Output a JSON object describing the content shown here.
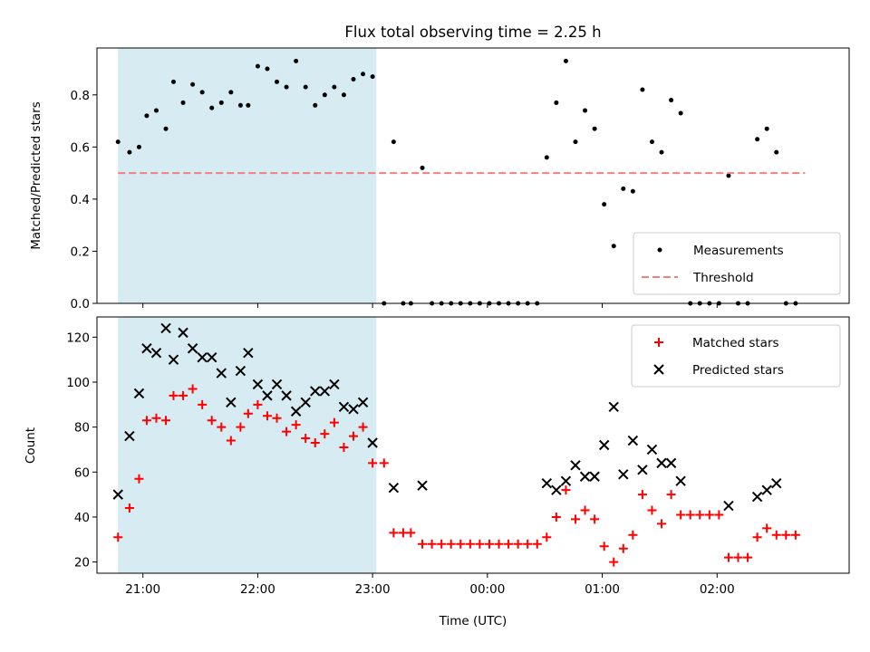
{
  "chart_data": [
    {
      "type": "scatter",
      "title": "Flux total observing time = 2.25 h",
      "xlabel": "",
      "ylabel": "Matched/Predicted stars",
      "ylim": [
        0,
        0.98
      ],
      "xlim": [
        "20:36",
        "03:09"
      ],
      "yticks": [
        "0.0",
        "0.2",
        "0.4",
        "0.6",
        "0.8"
      ],
      "legend_position": "bottom-right",
      "shaded_region": {
        "start": "20:47",
        "end": "23:02",
        "color": "#add8e6"
      },
      "series": [
        {
          "name": "Measurements",
          "marker": "dot",
          "color": "#000000",
          "points": [
            [
              "20:47",
              0.62
            ],
            [
              "20:53",
              0.58
            ],
            [
              "20:58",
              0.6
            ],
            [
              "21:02",
              0.72
            ],
            [
              "21:07",
              0.74
            ],
            [
              "21:12",
              0.67
            ],
            [
              "21:16",
              0.85
            ],
            [
              "21:21",
              0.77
            ],
            [
              "21:26",
              0.84
            ],
            [
              "21:31",
              0.81
            ],
            [
              "21:36",
              0.75
            ],
            [
              "21:41",
              0.77
            ],
            [
              "21:46",
              0.81
            ],
            [
              "21:51",
              0.76
            ],
            [
              "21:55",
              0.76
            ],
            [
              "22:00",
              0.91
            ],
            [
              "22:05",
              0.9
            ],
            [
              "22:10",
              0.85
            ],
            [
              "22:15",
              0.83
            ],
            [
              "22:20",
              0.93
            ],
            [
              "22:25",
              0.83
            ],
            [
              "22:30",
              0.76
            ],
            [
              "22:35",
              0.8
            ],
            [
              "22:40",
              0.83
            ],
            [
              "22:45",
              0.8
            ],
            [
              "22:50",
              0.86
            ],
            [
              "22:55",
              0.88
            ],
            [
              "23:00",
              0.87
            ],
            [
              "23:06",
              0.0
            ],
            [
              "23:11",
              0.62
            ],
            [
              "23:16",
              0.0
            ],
            [
              "23:20",
              0.0
            ],
            [
              "23:26",
              0.52
            ],
            [
              "23:31",
              0.0
            ],
            [
              "23:36",
              0.0
            ],
            [
              "23:41",
              0.0
            ],
            [
              "23:46",
              0.0
            ],
            [
              "23:51",
              0.0
            ],
            [
              "23:56",
              0.0
            ],
            [
              "00:01",
              0.0
            ],
            [
              "00:06",
              0.0
            ],
            [
              "00:11",
              0.0
            ],
            [
              "00:16",
              0.0
            ],
            [
              "00:21",
              0.0
            ],
            [
              "00:26",
              0.0
            ],
            [
              "00:31",
              0.56
            ],
            [
              "00:36",
              0.77
            ],
            [
              "00:41",
              0.93
            ],
            [
              "00:46",
              0.62
            ],
            [
              "00:51",
              0.74
            ],
            [
              "00:56",
              0.67
            ],
            [
              "01:01",
              0.38
            ],
            [
              "01:06",
              0.22
            ],
            [
              "01:11",
              0.44
            ],
            [
              "01:16",
              0.43
            ],
            [
              "01:21",
              0.82
            ],
            [
              "01:26",
              0.62
            ],
            [
              "01:31",
              0.58
            ],
            [
              "01:36",
              0.78
            ],
            [
              "01:41",
              0.73
            ],
            [
              "01:46",
              0.0
            ],
            [
              "01:51",
              0.0
            ],
            [
              "01:56",
              0.0
            ],
            [
              "02:01",
              0.0
            ],
            [
              "02:06",
              0.49
            ],
            [
              "02:11",
              0.0
            ],
            [
              "02:16",
              0.0
            ],
            [
              "02:21",
              0.63
            ],
            [
              "02:26",
              0.67
            ],
            [
              "02:31",
              0.58
            ],
            [
              "02:36",
              0.0
            ],
            [
              "02:41",
              0.0
            ]
          ]
        },
        {
          "name": "Threshold",
          "marker": "dashed-line",
          "color": "#f08080",
          "points": [
            [
              "20:47",
              0.5
            ],
            [
              "02:46",
              0.5
            ]
          ]
        }
      ]
    },
    {
      "type": "scatter",
      "title": "",
      "xlabel": "Time (UTC)",
      "ylabel": "Count",
      "ylim": [
        15,
        129
      ],
      "xlim": [
        "20:36",
        "03:09"
      ],
      "yticks": [
        "20",
        "40",
        "60",
        "80",
        "100",
        "120"
      ],
      "xticks": [
        "21:00",
        "22:00",
        "23:00",
        "00:00",
        "01:00",
        "02:00"
      ],
      "legend_position": "top-right",
      "shaded_region": {
        "start": "20:47",
        "end": "23:02",
        "color": "#add8e6"
      },
      "series": [
        {
          "name": "Matched stars",
          "marker": "plus",
          "color": "#ff0000",
          "points": [
            [
              "20:47",
              31
            ],
            [
              "20:53",
              44
            ],
            [
              "20:58",
              57
            ],
            [
              "21:02",
              83
            ],
            [
              "21:07",
              84
            ],
            [
              "21:12",
              83
            ],
            [
              "21:16",
              94
            ],
            [
              "21:21",
              94
            ],
            [
              "21:26",
              97
            ],
            [
              "21:31",
              90
            ],
            [
              "21:36",
              83
            ],
            [
              "21:41",
              80
            ],
            [
              "21:46",
              74
            ],
            [
              "21:51",
              80
            ],
            [
              "21:55",
              86
            ],
            [
              "22:00",
              90
            ],
            [
              "22:05",
              85
            ],
            [
              "22:10",
              84
            ],
            [
              "22:15",
              78
            ],
            [
              "22:20",
              81
            ],
            [
              "22:25",
              75
            ],
            [
              "22:30",
              73
            ],
            [
              "22:35",
              77
            ],
            [
              "22:40",
              82
            ],
            [
              "22:45",
              71
            ],
            [
              "22:50",
              76
            ],
            [
              "22:55",
              80
            ],
            [
              "23:00",
              64
            ],
            [
              "23:06",
              64
            ],
            [
              "23:11",
              33
            ],
            [
              "23:16",
              33
            ],
            [
              "23:20",
              33
            ],
            [
              "23:26",
              28
            ],
            [
              "23:31",
              28
            ],
            [
              "23:36",
              28
            ],
            [
              "23:41",
              28
            ],
            [
              "23:46",
              28
            ],
            [
              "23:51",
              28
            ],
            [
              "23:56",
              28
            ],
            [
              "00:01",
              28
            ],
            [
              "00:06",
              28
            ],
            [
              "00:11",
              28
            ],
            [
              "00:16",
              28
            ],
            [
              "00:21",
              28
            ],
            [
              "00:26",
              28
            ],
            [
              "00:31",
              31
            ],
            [
              "00:36",
              40
            ],
            [
              "00:41",
              52
            ],
            [
              "00:46",
              39
            ],
            [
              "00:51",
              43
            ],
            [
              "00:56",
              39
            ],
            [
              "01:01",
              27
            ],
            [
              "01:06",
              20
            ],
            [
              "01:11",
              26
            ],
            [
              "01:16",
              32
            ],
            [
              "01:21",
              50
            ],
            [
              "01:26",
              43
            ],
            [
              "01:31",
              37
            ],
            [
              "01:36",
              50
            ],
            [
              "01:41",
              41
            ],
            [
              "01:46",
              41
            ],
            [
              "01:51",
              41
            ],
            [
              "01:56",
              41
            ],
            [
              "02:01",
              41
            ],
            [
              "02:06",
              22
            ],
            [
              "02:11",
              22
            ],
            [
              "02:16",
              22
            ],
            [
              "02:21",
              31
            ],
            [
              "02:26",
              35
            ],
            [
              "02:31",
              32
            ],
            [
              "02:36",
              32
            ],
            [
              "02:41",
              32
            ]
          ]
        },
        {
          "name": "Predicted stars",
          "marker": "x",
          "color": "#000000",
          "points": [
            [
              "20:47",
              50
            ],
            [
              "20:53",
              76
            ],
            [
              "20:58",
              95
            ],
            [
              "21:02",
              115
            ],
            [
              "21:07",
              113
            ],
            [
              "21:12",
              124
            ],
            [
              "21:16",
              110
            ],
            [
              "21:21",
              122
            ],
            [
              "21:26",
              115
            ],
            [
              "21:31",
              111
            ],
            [
              "21:36",
              111
            ],
            [
              "21:41",
              104
            ],
            [
              "21:46",
              91
            ],
            [
              "21:51",
              105
            ],
            [
              "21:55",
              113
            ],
            [
              "22:00",
              99
            ],
            [
              "22:05",
              94
            ],
            [
              "22:10",
              99
            ],
            [
              "22:15",
              94
            ],
            [
              "22:20",
              87
            ],
            [
              "22:25",
              91
            ],
            [
              "22:30",
              96
            ],
            [
              "22:35",
              96
            ],
            [
              "22:40",
              99
            ],
            [
              "22:45",
              89
            ],
            [
              "22:50",
              88
            ],
            [
              "22:55",
              91
            ],
            [
              "23:00",
              73
            ],
            [
              "23:11",
              53
            ],
            [
              "23:26",
              54
            ],
            [
              "00:31",
              55
            ],
            [
              "00:36",
              52
            ],
            [
              "00:41",
              56
            ],
            [
              "00:46",
              63
            ],
            [
              "00:51",
              58
            ],
            [
              "00:56",
              58
            ],
            [
              "01:01",
              72
            ],
            [
              "01:06",
              89
            ],
            [
              "01:11",
              59
            ],
            [
              "01:16",
              74
            ],
            [
              "01:21",
              61
            ],
            [
              "01:26",
              70
            ],
            [
              "01:31",
              64
            ],
            [
              "01:36",
              64
            ],
            [
              "01:41",
              56
            ],
            [
              "02:06",
              45
            ],
            [
              "02:21",
              49
            ],
            [
              "02:26",
              52
            ],
            [
              "02:31",
              55
            ]
          ]
        }
      ]
    }
  ]
}
